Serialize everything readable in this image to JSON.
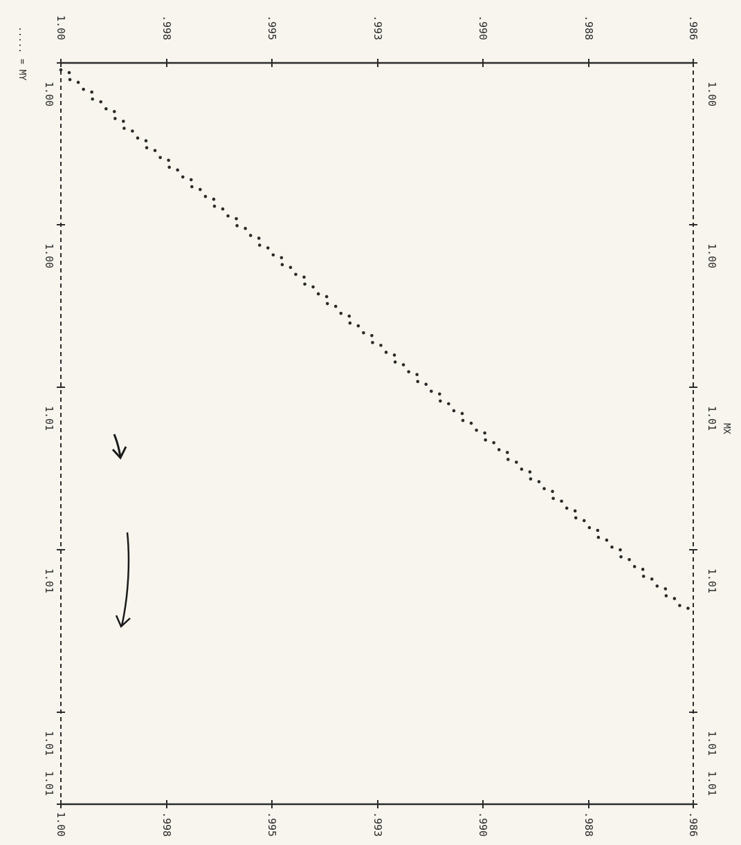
{
  "chart_data": {
    "type": "scatter",
    "orientation": "rotated-90-clockwise",
    "legend": {
      "text": "..... = MY",
      "placement": "top-left"
    },
    "xlabel": "MX",
    "ylabel": "",
    "x_ticks": [
      "1.00",
      "1.00",
      "1.01",
      "1.01",
      "1.01"
    ],
    "x_ticks_far_end": "1.01",
    "y_ticks": [
      "1.00",
      ".998",
      ".995",
      ".993",
      ".990",
      ".988",
      ".986"
    ],
    "xlim": [
      0,
      5
    ],
    "ylim": [
      0.986,
      1.0
    ],
    "grid": false,
    "series": [
      {
        "marker": "dot",
        "color": "#2a2a2a",
        "points": [
          {
            "x": 0.0,
            "y": 1.0
          },
          {
            "x": 0.06,
            "y": 0.9998
          },
          {
            "x": 0.12,
            "y": 0.9995
          },
          {
            "x": 0.18,
            "y": 0.9993
          },
          {
            "x": 0.24,
            "y": 0.999
          },
          {
            "x": 0.3,
            "y": 0.9988
          },
          {
            "x": 0.36,
            "y": 0.9986
          },
          {
            "x": 0.42,
            "y": 0.9983
          },
          {
            "x": 0.48,
            "y": 0.9981
          },
          {
            "x": 0.54,
            "y": 0.9978
          },
          {
            "x": 0.6,
            "y": 0.9976
          },
          {
            "x": 0.66,
            "y": 0.9973
          },
          {
            "x": 0.72,
            "y": 0.9971
          },
          {
            "x": 0.78,
            "y": 0.9968
          },
          {
            "x": 0.84,
            "y": 0.9966
          },
          {
            "x": 0.9,
            "y": 0.9963
          },
          {
            "x": 0.96,
            "y": 0.9961
          },
          {
            "x": 1.02,
            "y": 0.9958
          },
          {
            "x": 1.08,
            "y": 0.9956
          },
          {
            "x": 1.14,
            "y": 0.9953
          },
          {
            "x": 1.2,
            "y": 0.9951
          },
          {
            "x": 1.26,
            "y": 0.9948
          },
          {
            "x": 1.32,
            "y": 0.9946
          },
          {
            "x": 1.38,
            "y": 0.9943
          },
          {
            "x": 1.44,
            "y": 0.9941
          },
          {
            "x": 1.5,
            "y": 0.9938
          },
          {
            "x": 1.56,
            "y": 0.9936
          },
          {
            "x": 1.62,
            "y": 0.9933
          },
          {
            "x": 1.68,
            "y": 0.9931
          },
          {
            "x": 1.74,
            "y": 0.9928
          },
          {
            "x": 1.8,
            "y": 0.9926
          },
          {
            "x": 1.86,
            "y": 0.9923
          },
          {
            "x": 1.92,
            "y": 0.9921
          },
          {
            "x": 1.98,
            "y": 0.9918
          },
          {
            "x": 2.04,
            "y": 0.9916
          },
          {
            "x": 2.1,
            "y": 0.9913
          },
          {
            "x": 2.16,
            "y": 0.9911
          },
          {
            "x": 2.22,
            "y": 0.9908
          },
          {
            "x": 2.28,
            "y": 0.9906
          },
          {
            "x": 2.34,
            "y": 0.9903
          },
          {
            "x": 2.4,
            "y": 0.9901
          },
          {
            "x": 2.46,
            "y": 0.9898
          },
          {
            "x": 2.52,
            "y": 0.9896
          },
          {
            "x": 2.58,
            "y": 0.9893
          },
          {
            "x": 2.64,
            "y": 0.9891
          },
          {
            "x": 2.7,
            "y": 0.9888
          },
          {
            "x": 2.76,
            "y": 0.9886
          },
          {
            "x": 2.82,
            "y": 0.9883
          },
          {
            "x": 2.88,
            "y": 0.9881
          },
          {
            "x": 2.94,
            "y": 0.9878
          },
          {
            "x": 3.0,
            "y": 0.9876
          },
          {
            "x": 3.06,
            "y": 0.9873
          },
          {
            "x": 3.12,
            "y": 0.9871
          },
          {
            "x": 3.18,
            "y": 0.9868
          },
          {
            "x": 3.24,
            "y": 0.9866
          },
          {
            "x": 3.3,
            "y": 0.9863
          }
        ]
      }
    ],
    "annotations": [
      {
        "type": "handwritten-arrow",
        "target": {
          "x": 1.0,
          "y": 0.9985
        }
      },
      {
        "type": "handwritten-arrow",
        "target": {
          "x": 2.1,
          "y": 0.9983
        }
      }
    ]
  }
}
